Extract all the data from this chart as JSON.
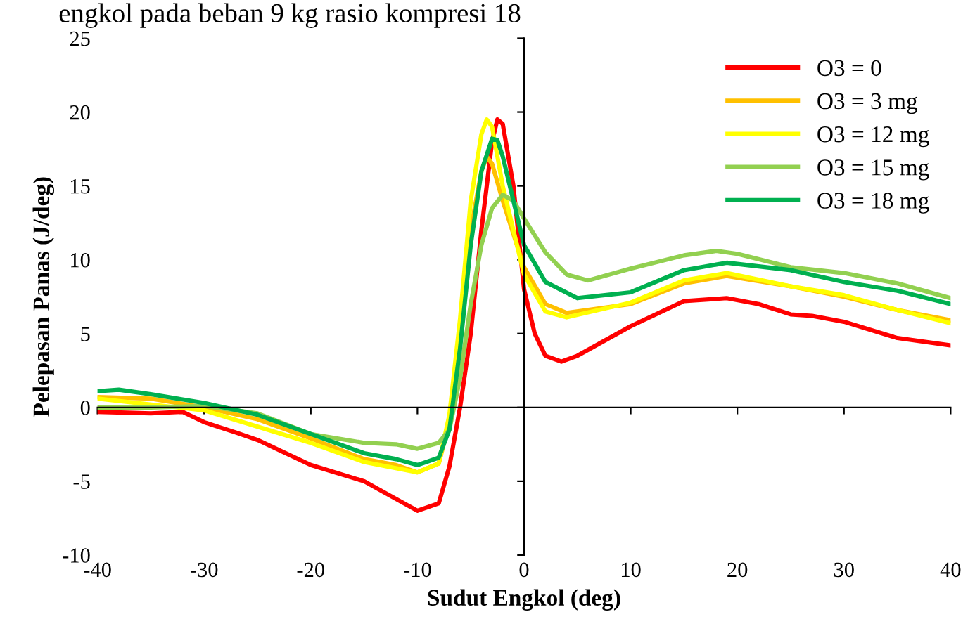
{
  "chart_data": {
    "type": "line",
    "title": "engkol pada beban 9 kg rasio kompresi 18",
    "xlabel": "Sudut Engkol (deg)",
    "ylabel": "Pelepasan Panas (J/deg)",
    "xlim": [
      -40,
      40
    ],
    "xticks": [
      -40,
      -30,
      -20,
      -10,
      0,
      10,
      20,
      30,
      40
    ],
    "ylim": [
      -10,
      25
    ],
    "yticks": [
      -10,
      -5,
      0,
      5,
      10,
      15,
      20,
      25
    ],
    "legend": "top right",
    "marker": "none",
    "line_style": "solid",
    "series": [
      {
        "name": "O3 = 0",
        "color": "#ff0000",
        "x": [
          -40,
          -35,
          -32,
          -30,
          -27,
          -25,
          -20,
          -15,
          -12,
          -10,
          -8,
          -7,
          -6,
          -5,
          -4,
          -3,
          -2.5,
          -2,
          -1,
          0,
          1,
          2,
          3.5,
          5,
          10,
          15,
          19,
          22,
          25,
          27,
          30,
          35,
          40
        ],
        "values": [
          -0.3,
          -0.4,
          -0.3,
          -1,
          -1.7,
          -2.2,
          -3.9,
          -5.0,
          -6.2,
          -7.0,
          -6.5,
          -4,
          0,
          5,
          12,
          18,
          19.5,
          19.2,
          15,
          8,
          5,
          3.5,
          3.1,
          3.5,
          5.5,
          7.2,
          7.4,
          7,
          6.3,
          6.2,
          5.8,
          4.7,
          4.2
        ]
      },
      {
        "name": "O3 = 3 mg",
        "color": "#ffc000",
        "x": [
          -40,
          -35,
          -30,
          -25,
          -20,
          -15,
          -12,
          -10,
          -8,
          -7,
          -6,
          -5,
          -4,
          -3.5,
          -3,
          -2,
          0,
          2,
          4,
          10,
          15,
          19,
          25,
          30,
          35,
          40
        ],
        "values": [
          0.7,
          0.6,
          0,
          -0.8,
          -2.1,
          -3.5,
          -3.9,
          -4.4,
          -3.8,
          -1,
          5,
          12,
          16,
          17,
          16.5,
          14,
          9.5,
          7,
          6.4,
          7.0,
          8.4,
          8.9,
          8.2,
          7.5,
          6.6,
          5.9
        ]
      },
      {
        "name": "O3 = 12 mg",
        "color": "#ffff00",
        "x": [
          -40,
          -30,
          -20,
          -15,
          -10,
          -8,
          -7,
          -6,
          -5,
          -4,
          -3.5,
          -3,
          -2,
          0,
          2,
          4,
          10,
          15,
          19,
          25,
          30,
          35,
          40
        ],
        "values": [
          0.6,
          -0.2,
          -2.4,
          -3.7,
          -4.4,
          -3.8,
          -0.5,
          6,
          14,
          18.5,
          19.5,
          19,
          15,
          9,
          6.5,
          6.1,
          7.1,
          8.6,
          9.1,
          8.2,
          7.6,
          6.6,
          5.7
        ]
      },
      {
        "name": "O3 = 15 mg",
        "color": "#92d050",
        "x": [
          -40,
          -35,
          -30,
          -25,
          -20,
          -15,
          -12,
          -10,
          -8,
          -7,
          -6,
          -5,
          -4,
          -3,
          -2,
          -1,
          0,
          2,
          4,
          6,
          10,
          15,
          18,
          20,
          25,
          30,
          35,
          40
        ],
        "values": [
          0,
          0,
          0.1,
          -0.4,
          -1.8,
          -2.4,
          -2.5,
          -2.8,
          -2.4,
          -1.5,
          2,
          7,
          11,
          13.5,
          14.4,
          14,
          12.8,
          10.5,
          9.0,
          8.6,
          9.4,
          10.3,
          10.6,
          10.4,
          9.5,
          9.1,
          8.4,
          7.4
        ]
      },
      {
        "name": "O3 = 18 mg",
        "color": "#00b050",
        "x": [
          -40,
          -38,
          -35,
          -30,
          -25,
          -20,
          -15,
          -12,
          -10,
          -8,
          -7,
          -6,
          -5,
          -4,
          -3,
          -2.5,
          -2,
          0,
          2,
          5,
          10,
          15,
          19,
          25,
          30,
          35,
          40
        ],
        "values": [
          1.1,
          1.2,
          0.9,
          0.3,
          -0.5,
          -1.8,
          -3.1,
          -3.5,
          -3.9,
          -3.4,
          -1.5,
          4,
          11,
          16,
          18.2,
          18.1,
          17,
          11,
          8.5,
          7.4,
          7.8,
          9.3,
          9.8,
          9.3,
          8.5,
          7.9,
          7.0
        ]
      }
    ]
  }
}
